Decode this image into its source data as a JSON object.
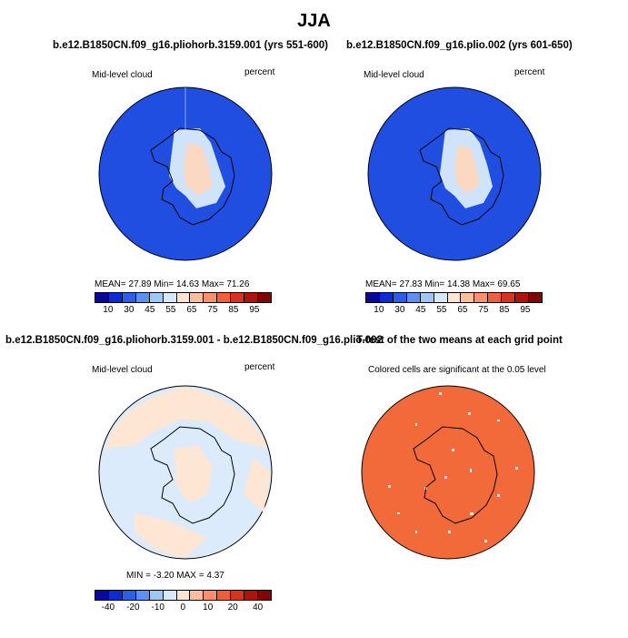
{
  "title": "JJA",
  "panels": [
    {
      "title": "b.e12.B1850CN.f09_g16.pliohorb.3159.001 (yrs 551-600)",
      "left_label": "Mid-level cloud",
      "right_label": "percent",
      "stats": "MEAN=   27.89  Min=   14.63  Max=   71.26"
    },
    {
      "title": "b.e12.B1850CN.f09_g16.plio.002 (yrs 601-650)",
      "left_label": "Mid-level cloud",
      "right_label": "percent",
      "stats": "MEAN=   27.83  Min=   14.38  Max=   69.65"
    },
    {
      "title": "b.e12.B1850CN.f09_g16.pliohorb.3159.001 - b.e12.B1850CN.f09_g16.plio.002",
      "left_label": "Mid-level cloud",
      "right_label": "percent",
      "stats": "MIN =  -3.20  MAX =    4.37"
    },
    {
      "title": "T-test of the two means at each grid point",
      "subtitle": "Colored cells are significant at the 0.05 level"
    }
  ],
  "colorbar_top": {
    "colors": [
      "#08089a",
      "#0b2ad8",
      "#2a5fe8",
      "#5b92f2",
      "#9ec6f7",
      "#d6e9fa",
      "#fde4d2",
      "#fbbf9f",
      "#f7906b",
      "#ef5f3c",
      "#d8331d",
      "#b01309",
      "#7e0703"
    ],
    "tick_labels": [
      "10",
      "30",
      "45",
      "55",
      "65",
      "75",
      "85",
      "95"
    ]
  },
  "colorbar_diff": {
    "colors": [
      "#08089a",
      "#0b2ad8",
      "#2a5fe8",
      "#5b92f2",
      "#9ec6f7",
      "#d6e9fa",
      "#fde4d2",
      "#fbbf9f",
      "#f7906b",
      "#ef5f3c",
      "#d8331d",
      "#b01309",
      "#7e0703"
    ],
    "tick_labels": [
      "-40",
      "-20",
      "-10",
      "0",
      "10",
      "20",
      "40"
    ]
  },
  "map_colors": {
    "ocean_blue": "#1f4ee0",
    "ice_light": "#cfe4fb",
    "ice_core": "#fbd8c2",
    "diff_blue": "#dcebfb",
    "diff_peach": "#fde6d4",
    "ttest_orange": "#f36a3a"
  }
}
